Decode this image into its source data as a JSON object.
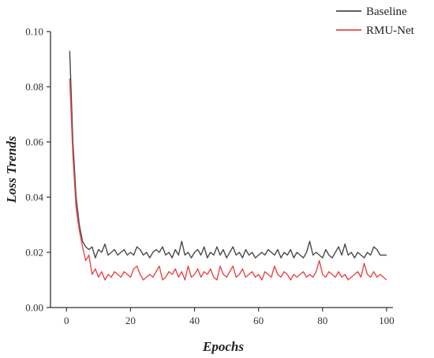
{
  "colors": {
    "baseline": "#4a4a4a",
    "rmu": "#e8474c",
    "axis": "#333333"
  },
  "chart_data": {
    "type": "line",
    "title": "",
    "xlabel": "Epochs",
    "ylabel": "Loss Trends",
    "xlim": [
      -5,
      102
    ],
    "ylim": [
      0,
      0.1
    ],
    "x_ticks": [
      0,
      20,
      40,
      60,
      80,
      100
    ],
    "y_ticks": [
      0.0,
      0.02,
      0.04,
      0.06,
      0.08,
      0.1
    ],
    "x_tick_labels": [
      "0",
      "20",
      "40",
      "60",
      "80",
      "100"
    ],
    "y_tick_labels": [
      "0.00",
      "0.02",
      "0.04",
      "0.06",
      "0.08",
      "0.10"
    ],
    "legend_position": "top-right",
    "grid": false,
    "x": [
      1,
      2,
      3,
      4,
      5,
      6,
      7,
      8,
      9,
      10,
      11,
      12,
      13,
      14,
      15,
      16,
      17,
      18,
      19,
      20,
      21,
      22,
      23,
      24,
      25,
      26,
      27,
      28,
      29,
      30,
      31,
      32,
      33,
      34,
      35,
      36,
      37,
      38,
      39,
      40,
      41,
      42,
      43,
      44,
      45,
      46,
      47,
      48,
      49,
      50,
      51,
      52,
      53,
      54,
      55,
      56,
      57,
      58,
      59,
      60,
      61,
      62,
      63,
      64,
      65,
      66,
      67,
      68,
      69,
      70,
      71,
      72,
      73,
      74,
      75,
      76,
      77,
      78,
      79,
      80,
      81,
      82,
      83,
      84,
      85,
      86,
      87,
      88,
      89,
      90,
      91,
      92,
      93,
      94,
      95,
      96,
      97,
      98,
      99,
      100
    ],
    "series": [
      {
        "name": "Baseline",
        "color": "#4a4a4a",
        "values": [
          0.093,
          0.06,
          0.04,
          0.03,
          0.024,
          0.022,
          0.021,
          0.022,
          0.018,
          0.021,
          0.02,
          0.023,
          0.019,
          0.02,
          0.021,
          0.019,
          0.02,
          0.021,
          0.019,
          0.02,
          0.019,
          0.022,
          0.021,
          0.019,
          0.02,
          0.018,
          0.02,
          0.021,
          0.02,
          0.022,
          0.019,
          0.02,
          0.018,
          0.021,
          0.019,
          0.024,
          0.019,
          0.02,
          0.018,
          0.02,
          0.021,
          0.019,
          0.022,
          0.018,
          0.02,
          0.019,
          0.022,
          0.019,
          0.021,
          0.018,
          0.02,
          0.022,
          0.019,
          0.02,
          0.018,
          0.021,
          0.019,
          0.02,
          0.018,
          0.019,
          0.02,
          0.019,
          0.021,
          0.02,
          0.019,
          0.021,
          0.018,
          0.02,
          0.019,
          0.021,
          0.018,
          0.02,
          0.019,
          0.018,
          0.02,
          0.024,
          0.019,
          0.02,
          0.019,
          0.018,
          0.021,
          0.019,
          0.018,
          0.02,
          0.022,
          0.019,
          0.023,
          0.019,
          0.02,
          0.018,
          0.02,
          0.019,
          0.018,
          0.02,
          0.019,
          0.022,
          0.021,
          0.019,
          0.019,
          0.019
        ]
      },
      {
        "name": "RMU-Net",
        "color": "#e8474c",
        "values": [
          0.083,
          0.055,
          0.036,
          0.028,
          0.022,
          0.017,
          0.019,
          0.012,
          0.014,
          0.011,
          0.013,
          0.01,
          0.012,
          0.011,
          0.013,
          0.012,
          0.011,
          0.013,
          0.012,
          0.011,
          0.014,
          0.015,
          0.012,
          0.01,
          0.011,
          0.012,
          0.011,
          0.013,
          0.015,
          0.01,
          0.011,
          0.013,
          0.012,
          0.014,
          0.011,
          0.013,
          0.01,
          0.015,
          0.011,
          0.012,
          0.014,
          0.011,
          0.013,
          0.012,
          0.014,
          0.011,
          0.01,
          0.015,
          0.012,
          0.011,
          0.013,
          0.015,
          0.011,
          0.012,
          0.014,
          0.011,
          0.012,
          0.013,
          0.011,
          0.012,
          0.01,
          0.013,
          0.012,
          0.011,
          0.015,
          0.012,
          0.011,
          0.013,
          0.012,
          0.01,
          0.012,
          0.011,
          0.012,
          0.013,
          0.011,
          0.012,
          0.011,
          0.013,
          0.017,
          0.012,
          0.011,
          0.013,
          0.012,
          0.011,
          0.013,
          0.011,
          0.012,
          0.01,
          0.011,
          0.012,
          0.013,
          0.011,
          0.016,
          0.012,
          0.011,
          0.013,
          0.011,
          0.012,
          0.011,
          0.01
        ]
      }
    ]
  }
}
